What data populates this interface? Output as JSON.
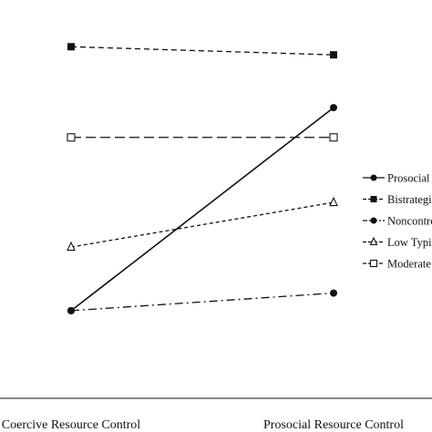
{
  "chart_data": {
    "type": "line",
    "categories": [
      "Coercive Resource Control",
      "Prosocial Resource Control"
    ],
    "series": [
      {
        "name": "Prosocial",
        "values": [
          -0.95,
          0.55
        ],
        "marker": "filled-circle",
        "dash": "solid"
      },
      {
        "name": "Bistrategic",
        "values": [
          1.0,
          0.94
        ],
        "marker": "filled-square",
        "dash": "dashed"
      },
      {
        "name": "Noncontrollers",
        "values": [
          -0.95,
          -0.82
        ],
        "marker": "filled-circle",
        "dash": "dash-dot"
      },
      {
        "name": "Low Typical",
        "values": [
          -0.48,
          -0.15
        ],
        "marker": "open-triangle",
        "dash": "short-dashed"
      },
      {
        "name": "Moderate Typical",
        "values": [
          0.33,
          0.33
        ],
        "marker": "open-square",
        "dash": "long-dashed"
      }
    ],
    "legend_labels": [
      "Prosocial",
      "Bistrategic",
      "Noncontrollers",
      "Low Typical",
      "Moderate Typical"
    ],
    "ylim": [
      -1.2,
      1.15
    ],
    "legend_position": "right",
    "line_color": "#111111"
  }
}
